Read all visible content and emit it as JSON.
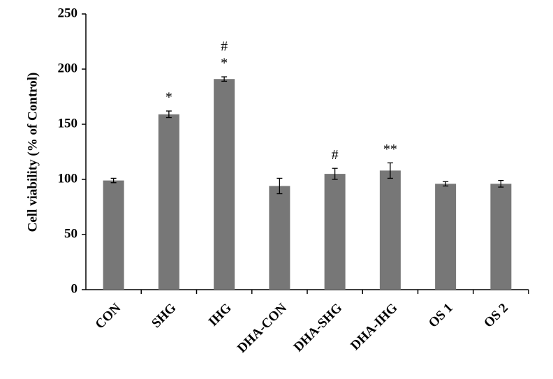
{
  "chart_data": {
    "type": "bar",
    "y_label": "Cell viability (% of Control)",
    "categories": [
      "CON",
      "SHG",
      "IHG",
      "DHA-CON",
      "DHA-SHG",
      "DHA-IHG",
      "OS 1",
      "OS 2"
    ],
    "values": [
      99,
      159,
      191,
      94,
      105,
      108,
      96,
      96
    ],
    "errors": [
      2,
      3,
      2,
      7,
      5,
      7,
      2,
      3
    ],
    "annotations": [
      null,
      [
        "*"
      ],
      [
        "#",
        "*"
      ],
      null,
      [
        "#"
      ],
      [
        "**"
      ],
      null,
      null
    ],
    "color": "#777777",
    "ylim": [
      0,
      250
    ],
    "yticks": [
      0,
      50,
      100,
      150,
      200,
      250
    ],
    "grid": false
  }
}
